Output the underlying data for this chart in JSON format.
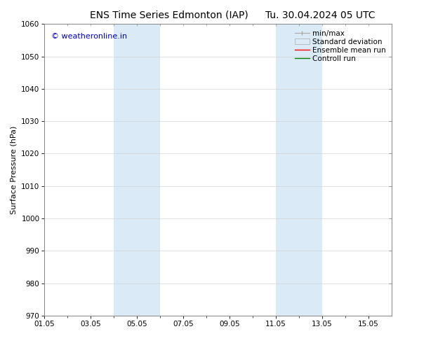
{
  "title_left": "ENS Time Series Edmonton (IAP)",
  "title_right": "Tu. 30.04.2024 05 UTC",
  "ylabel": "Surface Pressure (hPa)",
  "ylim": [
    970,
    1060
  ],
  "yticks": [
    970,
    980,
    990,
    1000,
    1010,
    1020,
    1030,
    1040,
    1050,
    1060
  ],
  "xlim": [
    0,
    15
  ],
  "xtick_labels": [
    "01.05",
    "03.05",
    "05.05",
    "07.05",
    "09.05",
    "11.05",
    "13.05",
    "15.05"
  ],
  "xtick_positions": [
    0,
    2,
    4,
    6,
    8,
    10,
    12,
    14
  ],
  "minor_xtick_positions": [
    0,
    1,
    2,
    3,
    4,
    5,
    6,
    7,
    8,
    9,
    10,
    11,
    12,
    13,
    14
  ],
  "shaded_regions": [
    {
      "x_start": 3,
      "x_end": 4,
      "color": "#dbeaf7"
    },
    {
      "x_start": 4,
      "x_end": 5,
      "color": "#dbeaf7"
    },
    {
      "x_start": 10,
      "x_end": 11,
      "color": "#dbeaf7"
    },
    {
      "x_start": 11,
      "x_end": 12,
      "color": "#dbeaf7"
    }
  ],
  "bg_color": "#ffffff",
  "plot_bg_color": "#ffffff",
  "grid_color": "#cccccc",
  "watermark_text": "© weatheronline.in",
  "watermark_color": "#0000cc",
  "legend_items": [
    {
      "label": "min/max",
      "color": "#aaaaaa",
      "type": "errorbar"
    },
    {
      "label": "Standard deviation",
      "color": "#dbeaf7",
      "type": "band"
    },
    {
      "label": "Ensemble mean run",
      "color": "#ff0000",
      "type": "line"
    },
    {
      "label": "Controll run",
      "color": "#008000",
      "type": "line"
    }
  ],
  "border_color": "#888888",
  "tick_color": "#000000",
  "title_fontsize": 10,
  "ylabel_fontsize": 8,
  "tick_fontsize": 7.5,
  "watermark_fontsize": 8,
  "legend_fontsize": 7.5
}
